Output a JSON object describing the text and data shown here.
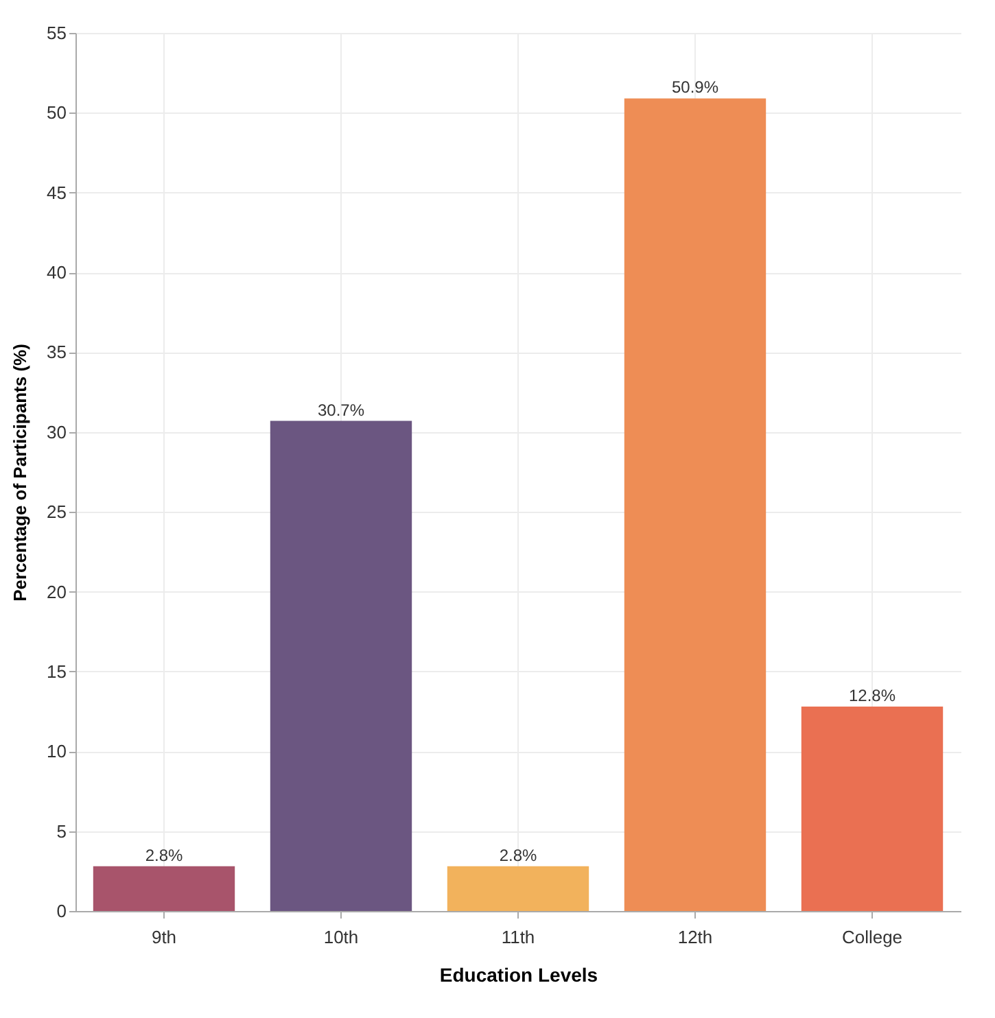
{
  "chart_data": {
    "type": "bar",
    "xlabel": "Education Levels",
    "ylabel": "Percentage of Participants (%)",
    "categories": [
      "9th",
      "10th",
      "11th",
      "12th",
      "College"
    ],
    "values": [
      2.8,
      30.7,
      2.8,
      50.9,
      12.8
    ],
    "value_labels": [
      "2.8%",
      "30.7%",
      "2.8%",
      "50.9%",
      "12.8%"
    ],
    "colors": [
      "#a8546b",
      "#6b5681",
      "#f2b25c",
      "#ee8d55",
      "#ea7052"
    ],
    "ylim": [
      0,
      55
    ],
    "yticks": [
      0,
      5,
      10,
      15,
      20,
      25,
      30,
      35,
      40,
      45,
      50,
      55
    ],
    "grid": true
  }
}
